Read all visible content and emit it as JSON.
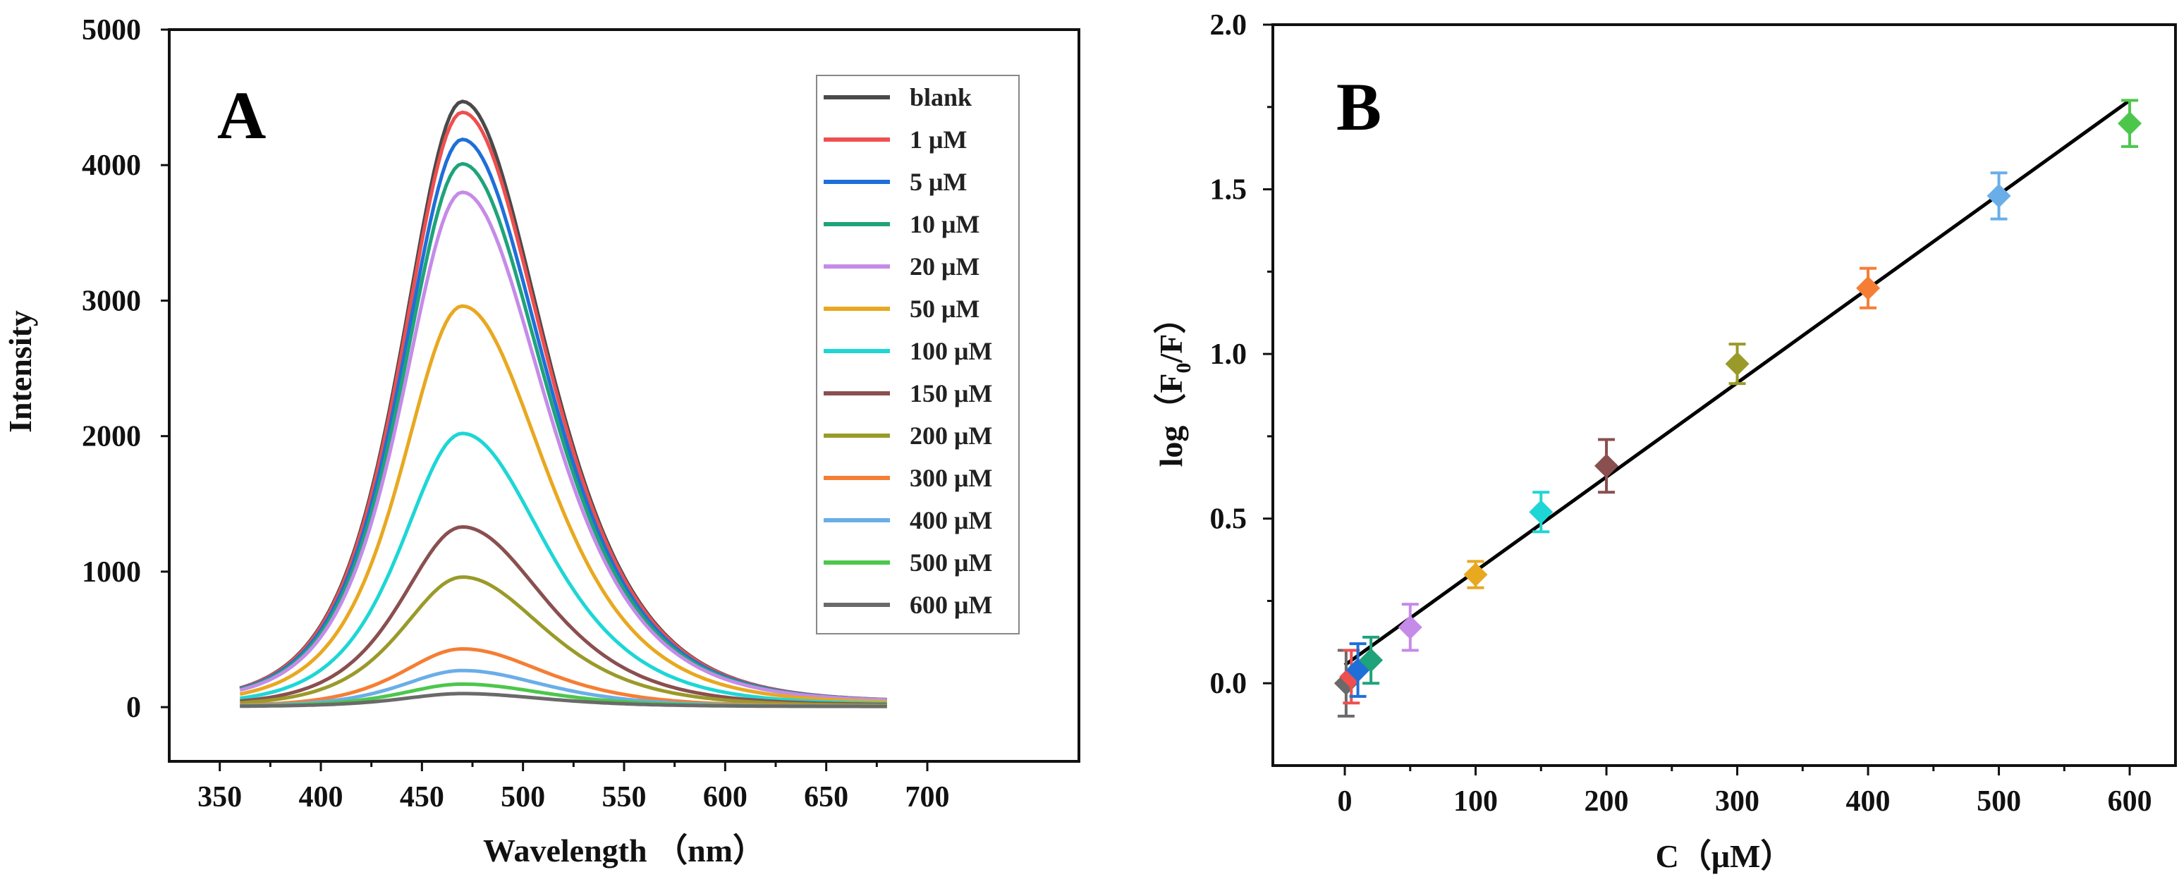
{
  "chart_data": [
    {
      "panel_label": "A",
      "type": "line",
      "xlabel": "Wavelength （nm）",
      "ylabel": "Intensity",
      "xlim": [
        325,
        775
      ],
      "ylim": [
        -400,
        5000
      ],
      "xticks": [
        350,
        400,
        450,
        500,
        550,
        600,
        650,
        700
      ],
      "yticks": [
        0,
        1000,
        2000,
        3000,
        4000,
        5000
      ],
      "x_range": [
        360,
        680
      ],
      "peak_x": 470,
      "legend_position": "top-right",
      "series": [
        {
          "name": "blank",
          "color": "#4a4a4a",
          "peak": 4470,
          "base": 40
        },
        {
          "name": "1 μM",
          "color": "#ef4f4f",
          "peak": 4390,
          "base": 40
        },
        {
          "name": "5 μM",
          "color": "#1f6fd8",
          "peak": 4190,
          "base": 40
        },
        {
          "name": "10 μM",
          "color": "#1fa37a",
          "peak": 4010,
          "base": 40
        },
        {
          "name": "20 μM",
          "color": "#c58be8",
          "peak": 3800,
          "base": 40
        },
        {
          "name": "50 μM",
          "color": "#e8a820",
          "peak": 2960,
          "base": 30
        },
        {
          "name": "100 μM",
          "color": "#1ed6d6",
          "peak": 2020,
          "base": 20
        },
        {
          "name": "150 μM",
          "color": "#8a4f4f",
          "peak": 1330,
          "base": 15
        },
        {
          "name": "200 μM",
          "color": "#9a9a2a",
          "peak": 960,
          "base": 10
        },
        {
          "name": "300 μM",
          "color": "#f57e34",
          "peak": 430,
          "base": 5
        },
        {
          "name": "400 μM",
          "color": "#6aaee8",
          "peak": 270,
          "base": 5
        },
        {
          "name": "500 μM",
          "color": "#4cc74c",
          "peak": 170,
          "base": 5
        },
        {
          "name": "600 μM",
          "color": "#6a6a6a",
          "peak": 100,
          "base": 5
        }
      ]
    },
    {
      "panel_label": "B",
      "type": "scatter",
      "xlabel": "C（μM）",
      "ylabel_main": "log（F",
      "ylabel_sub": "0",
      "ylabel_tail": "/F）",
      "xlim": [
        -55,
        635
      ],
      "ylim": [
        -0.25,
        2.0
      ],
      "xticks": [
        0,
        100,
        200,
        300,
        400,
        500,
        600
      ],
      "yticks": [
        "0.0",
        "0.5",
        "1.0",
        "1.5",
        "2.0"
      ],
      "fit_line": {
        "x": [
          0,
          600
        ],
        "y": [
          0.055,
          1.77
        ]
      },
      "points": [
        {
          "x": 1,
          "y": 0.0,
          "err": 0.1,
          "color": "#6a6a6a"
        },
        {
          "x": 5,
          "y": 0.02,
          "err": 0.08,
          "color": "#ef4f4f"
        },
        {
          "x": 10,
          "y": 0.04,
          "err": 0.08,
          "color": "#1f6fd8"
        },
        {
          "x": 20,
          "y": 0.07,
          "err": 0.07,
          "color": "#1fa37a"
        },
        {
          "x": 50,
          "y": 0.17,
          "err": 0.07,
          "color": "#c58be8"
        },
        {
          "x": 100,
          "y": 0.33,
          "err": 0.04,
          "color": "#e8a820"
        },
        {
          "x": 150,
          "y": 0.52,
          "err": 0.06,
          "color": "#1ed6d6"
        },
        {
          "x": 200,
          "y": 0.66,
          "err": 0.08,
          "color": "#8a4f4f"
        },
        {
          "x": 300,
          "y": 0.97,
          "err": 0.06,
          "color": "#9a9a2a"
        },
        {
          "x": 400,
          "y": 1.2,
          "err": 0.06,
          "color": "#f57e34"
        },
        {
          "x": 500,
          "y": 1.48,
          "err": 0.07,
          "color": "#6aaee8"
        },
        {
          "x": 600,
          "y": 1.7,
          "err": 0.07,
          "color": "#4cc74c"
        }
      ]
    }
  ]
}
